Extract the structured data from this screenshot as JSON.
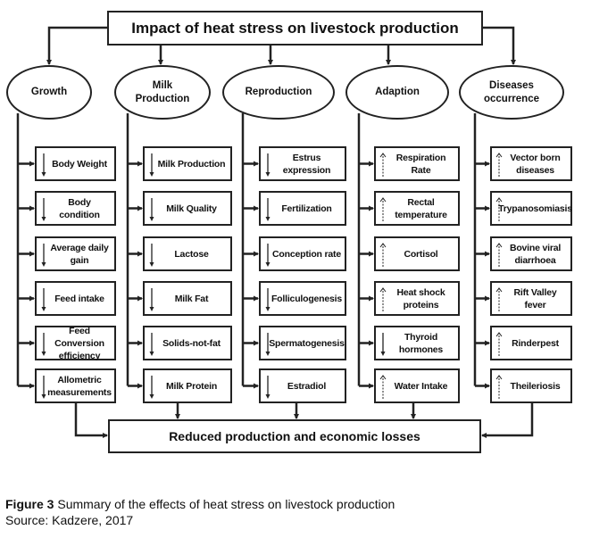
{
  "title": "Impact of heat stress on livestock production",
  "bottom": "Reduced production and economic losses",
  "categories": [
    {
      "label": "Growth",
      "items": [
        {
          "text": "Body Weight",
          "arrow": "down"
        },
        {
          "text": "Body condition",
          "arrow": "down"
        },
        {
          "text": "Average daily\ngain",
          "arrow": "down"
        },
        {
          "text": "Feed intake",
          "arrow": "down"
        },
        {
          "text": "Feed Conversion\nefficiency",
          "arrow": "down"
        },
        {
          "text": "Allometric\nmeasurements",
          "arrow": "down"
        }
      ]
    },
    {
      "label": "Milk\nProduction",
      "items": [
        {
          "text": "Milk Production",
          "arrow": "down"
        },
        {
          "text": "Milk Quality",
          "arrow": "down"
        },
        {
          "text": "Lactose",
          "arrow": "down"
        },
        {
          "text": "Milk Fat",
          "arrow": "down"
        },
        {
          "text": "Solids-not-fat",
          "arrow": "down"
        },
        {
          "text": "Milk Protein",
          "arrow": "down"
        }
      ]
    },
    {
      "label": "Reproduction",
      "items": [
        {
          "text": "Estrus\nexpression",
          "arrow": "down"
        },
        {
          "text": "Fertilization",
          "arrow": "down"
        },
        {
          "text": "Conception rate",
          "arrow": "down"
        },
        {
          "text": "Folliculogenesis",
          "arrow": "down"
        },
        {
          "text": "Spermatogenesis",
          "arrow": "down"
        },
        {
          "text": "Estradiol",
          "arrow": "down"
        }
      ]
    },
    {
      "label": "Adaption",
      "items": [
        {
          "text": "Respiration Rate",
          "arrow": "up"
        },
        {
          "text": "Rectal\ntemperature",
          "arrow": "up"
        },
        {
          "text": "Cortisol",
          "arrow": "up"
        },
        {
          "text": "Heat shock\nproteins",
          "arrow": "up"
        },
        {
          "text": "Thyroid\nhormones",
          "arrow": "down"
        },
        {
          "text": "Water Intake",
          "arrow": "up"
        }
      ]
    },
    {
      "label": "Diseases\noccurrence",
      "items": [
        {
          "text": "Vector born\ndiseases",
          "arrow": "up"
        },
        {
          "text": "Trypanosomiasis",
          "arrow": "up"
        },
        {
          "text": "Bovine viral\ndiarrhoea",
          "arrow": "up"
        },
        {
          "text": "Rift Valley\nfever",
          "arrow": "up"
        },
        {
          "text": "Rinderpest",
          "arrow": "up"
        },
        {
          "text": "Theileriosis",
          "arrow": "up"
        }
      ]
    }
  ],
  "caption": {
    "figure": "Figure 3",
    "text": " Summary of the effects of heat stress on livestock production",
    "source": "Source: Kadzere, 2017"
  }
}
